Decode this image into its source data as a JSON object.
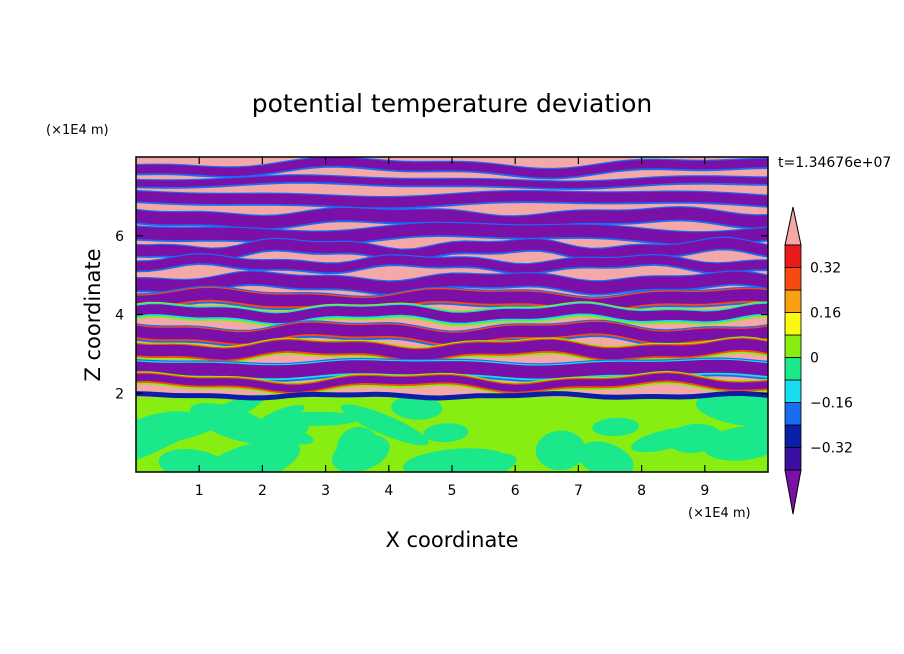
{
  "chart_data": {
    "type": "heatmap",
    "title": "potential temperature deviation",
    "xlabel": "X coordinate",
    "ylabel": "Z coordinate",
    "x_unit": "(×1E4 m)",
    "y_unit": "(×1E4 m)",
    "time_label": "t=1.34676e+07",
    "xlim": [
      0,
      10
    ],
    "ylim": [
      0,
      8
    ],
    "x_ticks": [
      1,
      2,
      3,
      4,
      5,
      6,
      7,
      8,
      9
    ],
    "y_ticks": [
      2,
      4,
      6
    ],
    "x_tick_labels": [
      "1",
      "2",
      "3",
      "4",
      "5",
      "6",
      "7",
      "8",
      "9"
    ],
    "y_tick_labels": [
      "2",
      "4",
      "6"
    ],
    "colorbar": {
      "levels": [
        -0.4,
        -0.32,
        -0.24,
        -0.16,
        -0.08,
        0,
        0.08,
        0.16,
        0.24,
        0.32,
        0.4
      ],
      "tick_values": [
        0.32,
        0.16,
        0,
        -0.16,
        -0.32
      ],
      "tick_labels": [
        "0.32",
        "0.16",
        "0",
        "−0.16",
        "−0.32"
      ],
      "colors": [
        "#7a10a8",
        "#3b0fa0",
        "#0b1ea8",
        "#1a6cf0",
        "#1adcf0",
        "#1ae88a",
        "#88ee11",
        "#f8f810",
        "#f8a010",
        "#f84a10",
        "#e81a1a",
        "#f4a8a8"
      ],
      "extend": "both"
    },
    "note_regions": [
      {
        "z_range": [
          0,
          1.9
        ],
        "description_values": [
          0,
          0.08
        ],
        "dominant_colors": [
          "#1ae88a",
          "#88ee11"
        ]
      },
      {
        "z_range": [
          1.9,
          8
        ],
        "description_values": [
          -0.4,
          0.4
        ],
        "dominant_colors": [
          "#f4a8a8",
          "#7a10a8"
        ]
      }
    ]
  }
}
